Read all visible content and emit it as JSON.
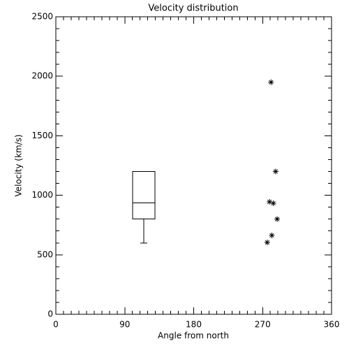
{
  "chart_data": {
    "type": "box",
    "title": "Velocity distribution",
    "x_label": "Angle from north",
    "y_label": "Velocity (km/s)",
    "xlim": [
      0,
      360
    ],
    "xticks": [
      0,
      90,
      180,
      270,
      360
    ],
    "ylim": [
      0,
      2500
    ],
    "yticks": [
      0,
      500,
      1000,
      1500,
      2000,
      2500
    ],
    "color": "#000000",
    "box": {
      "x": 115,
      "whisker_low": 600,
      "q1": 800,
      "median": 935,
      "q3": 1200
    },
    "points": {
      "x": [
        281,
        287,
        279,
        284,
        289,
        282,
        276
      ],
      "y": [
        1950,
        1200,
        945,
        933,
        800,
        663,
        604
      ]
    }
  }
}
